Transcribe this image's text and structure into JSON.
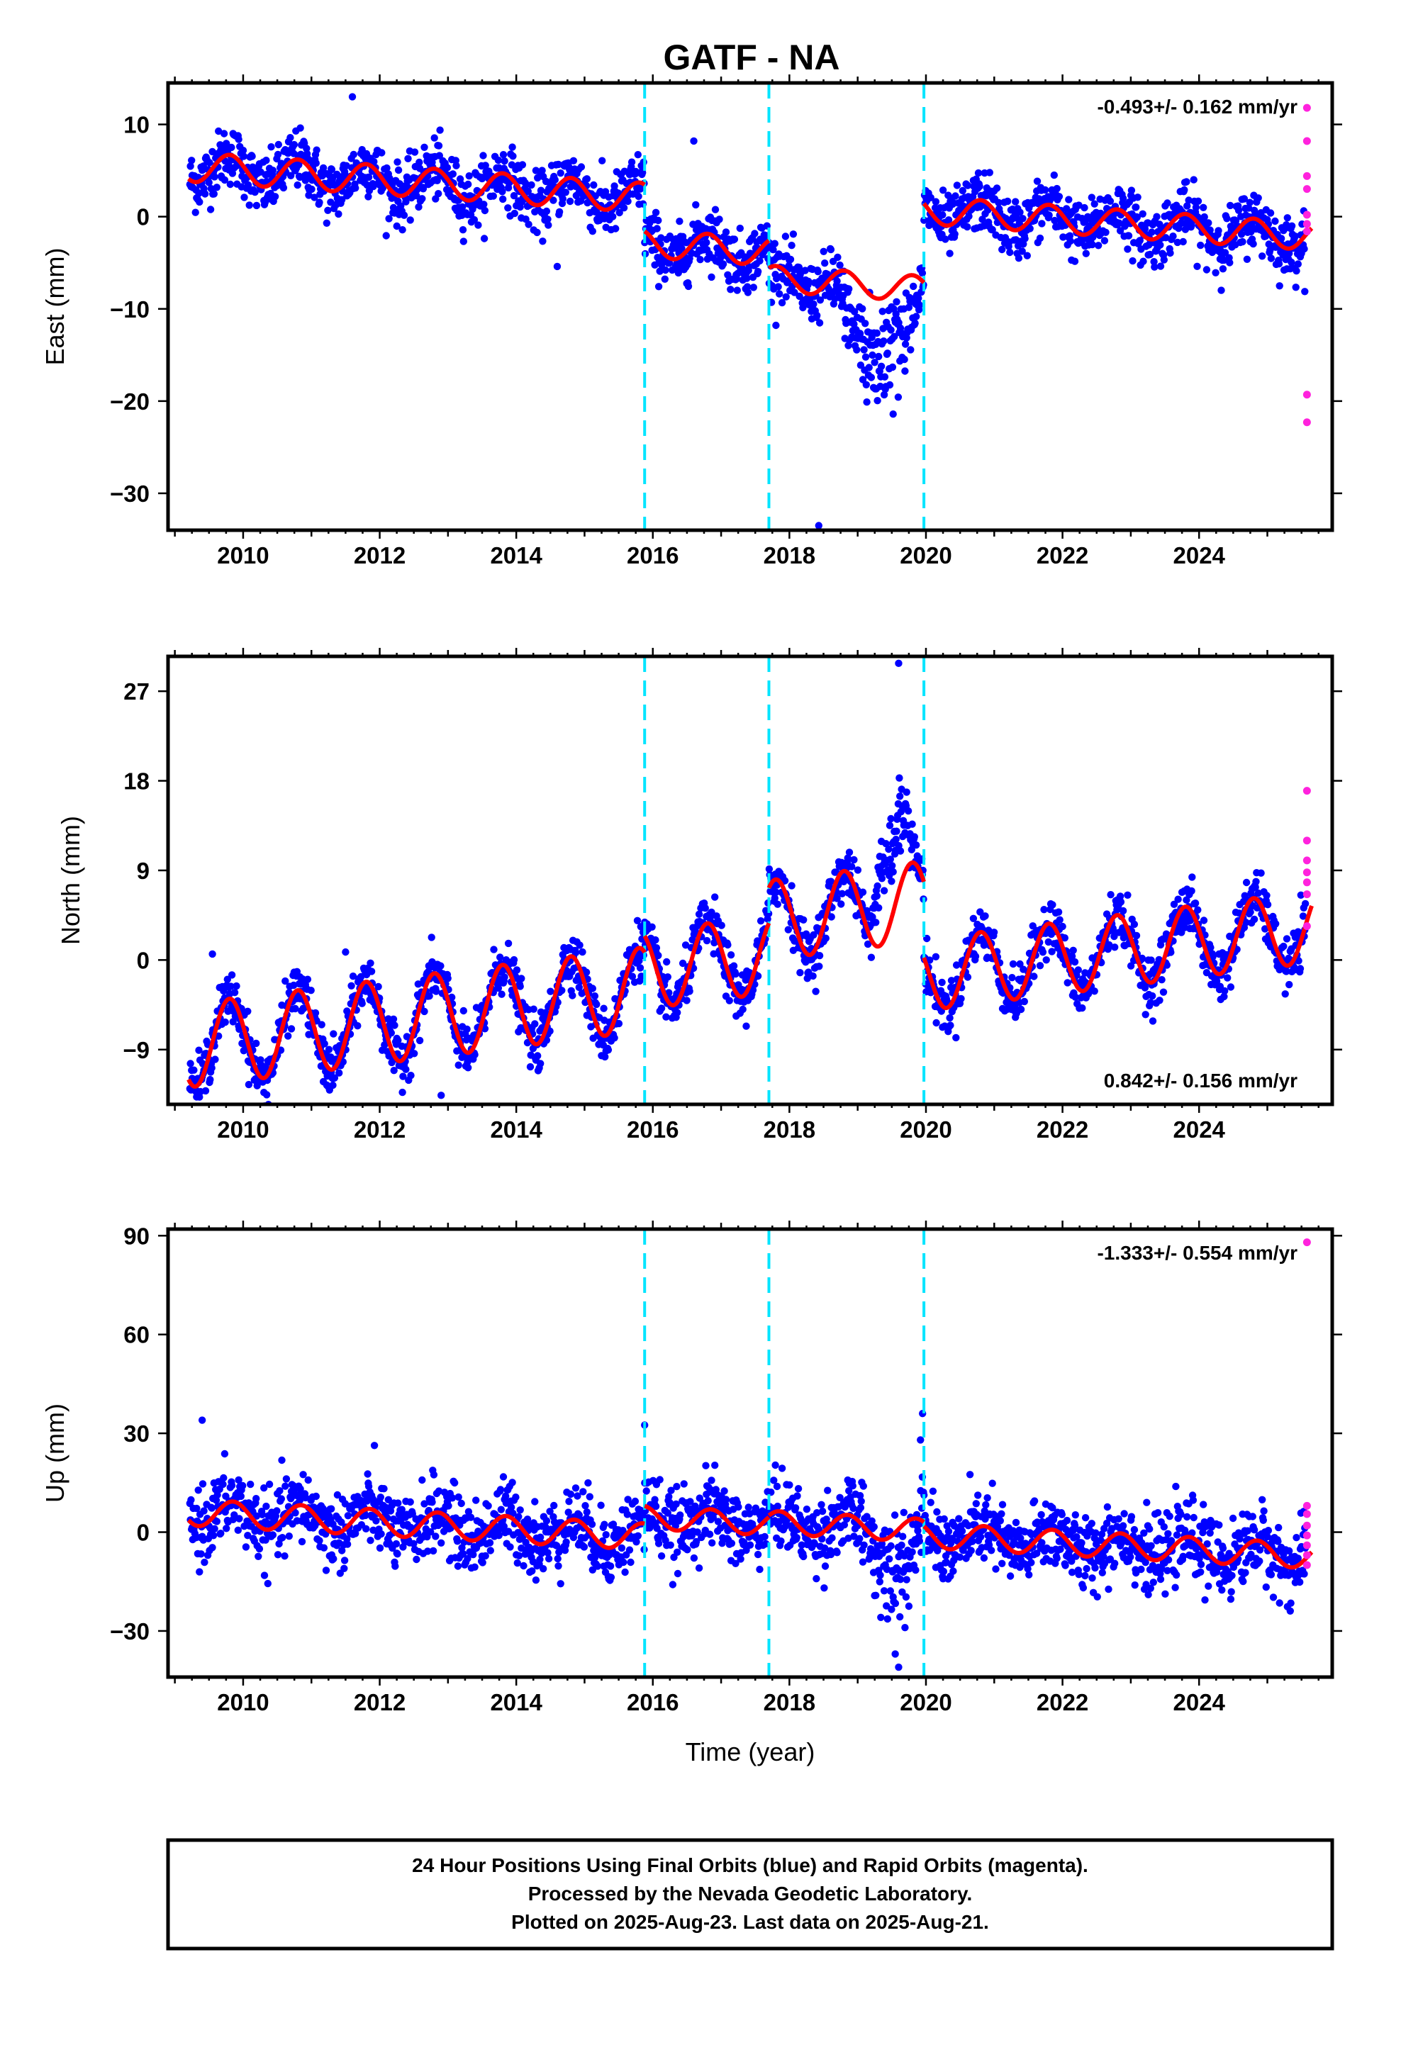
{
  "figure": {
    "title": "GATF - NA",
    "xlabel": "Time (year)",
    "colors": {
      "final": "#0000ff",
      "rapid": "#ff22dd",
      "model": "#ff0000",
      "breaks": "#00e5ff",
      "frame": "#000000"
    },
    "footer": {
      "line1": "24 Hour Positions Using Final Orbits (blue) and Rapid Orbits (magenta).",
      "line2": "Processed by the Nevada Geodetic Laboratory.",
      "line3": "Plotted on 2025-Aug-23. Last data on 2025-Aug-21."
    }
  },
  "chart_data": [
    {
      "type": "scatter",
      "component": "East",
      "ylabel": "East (mm)",
      "rate": "-0.493+/- 0.162 mm/yr",
      "xlim": [
        2008.9,
        2025.95
      ],
      "ylim": [
        -34,
        14.5
      ],
      "xticks": [
        2010,
        2012,
        2014,
        2016,
        2018,
        2020,
        2022,
        2024
      ],
      "yticks": [
        10,
        0,
        -10,
        -20,
        -30
      ],
      "ytick_labels": [
        "10",
        "0",
        "−10",
        "−20",
        "−30"
      ],
      "breaks": [
        2015.88,
        2017.7,
        2019.97
      ],
      "model": {
        "segments": [
          {
            "start": 2009.2,
            "end": 2015.88,
            "offset": 5.4,
            "rate": -0.5,
            "amp": 1.6,
            "phase": 0.55
          },
          {
            "start": 2015.88,
            "end": 2017.7,
            "offset": -2.9,
            "rate": -0.5,
            "amp": 1.5,
            "phase": 0.55
          },
          {
            "start": 2017.7,
            "end": 2019.97,
            "offset": -6.7,
            "rate": -0.5,
            "amp": 1.4,
            "phase": 0.55
          },
          {
            "start": 2019.97,
            "end": 2025.65,
            "offset": 0.7,
            "rate": -0.5,
            "amp": 1.5,
            "phase": 0.55
          }
        ]
      },
      "noise": 1.6,
      "anomaly": {
        "start": 2018.6,
        "end": 2019.97,
        "shift": -6.0,
        "noise": 3.0
      },
      "outliers": [
        [
          2018.43,
          -33.5
        ],
        [
          2016.6,
          8.2
        ],
        [
          2011.6,
          13.0
        ],
        [
          2014.6,
          -5.4
        ]
      ],
      "rapid": [
        [
          2025.58,
          11.8
        ],
        [
          2025.58,
          8.2
        ],
        [
          2025.58,
          4.4
        ],
        [
          2025.58,
          3.0
        ],
        [
          2025.58,
          0.2
        ],
        [
          2025.58,
          -0.8
        ],
        [
          2025.58,
          -1.6
        ],
        [
          2025.58,
          -19.3
        ],
        [
          2025.58,
          -22.3
        ]
      ]
    },
    {
      "type": "scatter",
      "component": "North",
      "ylabel": "North (mm)",
      "rate": "0.842+/- 0.156 mm/yr",
      "xlim": [
        2008.9,
        2025.95
      ],
      "ylim": [
        -14.5,
        30.5
      ],
      "xticks": [
        2010,
        2012,
        2014,
        2016,
        2018,
        2020,
        2022,
        2024
      ],
      "yticks": [
        27,
        18,
        9,
        0,
        -9
      ],
      "ytick_labels": [
        "27",
        "18",
        "9",
        "0",
        "−9"
      ],
      "breaks": [
        2015.88,
        2017.7,
        2019.97
      ],
      "model": {
        "segments": [
          {
            "start": 2009.2,
            "end": 2015.88,
            "offset": -8.6,
            "rate": 0.85,
            "amp": 4.2,
            "phase": 0.55
          },
          {
            "start": 2015.88,
            "end": 2017.7,
            "offset": -1.0,
            "rate": 0.85,
            "amp": 3.9,
            "phase": 0.55
          },
          {
            "start": 2017.7,
            "end": 2019.97,
            "offset": 4.0,
            "rate": 0.85,
            "amp": 4.0,
            "phase": 0.55
          },
          {
            "start": 2019.97,
            "end": 2025.65,
            "offset": -1.5,
            "rate": 0.85,
            "amp": 3.6,
            "phase": 0.55
          }
        ]
      },
      "noise": 1.3,
      "anomaly": {
        "start": 2019.15,
        "end": 2019.85,
        "shift": 7.0,
        "noise": 2.2
      },
      "outliers": [
        [
          2019.6,
          29.8
        ],
        [
          2012.9,
          -13.6
        ],
        [
          2009.55,
          0.6
        ],
        [
          2011.5,
          0.8
        ]
      ],
      "rapid": [
        [
          2025.58,
          17.0
        ],
        [
          2025.58,
          12.0
        ],
        [
          2025.58,
          10.0
        ],
        [
          2025.58,
          8.8
        ],
        [
          2025.58,
          7.8
        ],
        [
          2025.58,
          6.6
        ],
        [
          2025.58,
          3.4
        ]
      ]
    },
    {
      "type": "scatter",
      "component": "Up",
      "ylabel": "Up (mm)",
      "rate": "-1.333+/- 0.554 mm/yr",
      "xlim": [
        2008.9,
        2025.95
      ],
      "ylim": [
        -44,
        92
      ],
      "xticks": [
        2010,
        2012,
        2014,
        2016,
        2018,
        2020,
        2022,
        2024
      ],
      "yticks": [
        90,
        60,
        30,
        0,
        -30
      ],
      "ytick_labels": [
        "90",
        "60",
        "30",
        "0",
        "−30"
      ],
      "breaks": [
        2015.88,
        2017.7,
        2019.97
      ],
      "model": {
        "segments": [
          {
            "start": 2009.2,
            "end": 2015.88,
            "offset": 6.0,
            "rate": -1.1,
            "amp": 4.0,
            "phase": 0.6
          },
          {
            "start": 2015.88,
            "end": 2017.7,
            "offset": 4.5,
            "rate": -1.1,
            "amp": 3.5,
            "phase": 0.6
          },
          {
            "start": 2017.7,
            "end": 2019.97,
            "offset": 3.0,
            "rate": -1.1,
            "amp": 3.5,
            "phase": 0.6
          },
          {
            "start": 2019.97,
            "end": 2025.65,
            "offset": -1.0,
            "rate": -1.1,
            "amp": 3.8,
            "phase": 0.6
          }
        ]
      },
      "noise": 5.5,
      "anomaly": {
        "start": 2019.1,
        "end": 2019.97,
        "shift": -9.0,
        "noise": 8.0
      },
      "outliers": [
        [
          2009.4,
          34.0
        ],
        [
          2015.88,
          32.5
        ],
        [
          2019.95,
          36.0
        ],
        [
          2019.92,
          28.0
        ],
        [
          2019.6,
          -41.0
        ],
        [
          2019.55,
          -37.0
        ]
      ],
      "rapid": [
        [
          2025.58,
          88.0
        ],
        [
          2025.58,
          8.0
        ],
        [
          2025.58,
          5.5
        ],
        [
          2025.58,
          2.0
        ],
        [
          2025.58,
          -1.0
        ],
        [
          2025.58,
          -4.0
        ],
        [
          2025.58,
          -7.0
        ],
        [
          2025.58,
          -10.0
        ]
      ]
    }
  ]
}
